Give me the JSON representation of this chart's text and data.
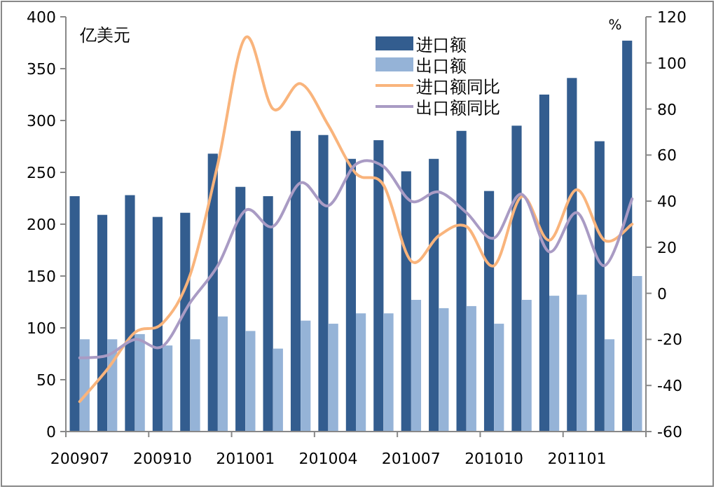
{
  "chart_data": {
    "type": "bar",
    "ylabel": "亿美元",
    "y2label": "%",
    "categories": [
      "200907",
      null,
      null,
      "200910",
      null,
      null,
      "201001",
      null,
      null,
      "201004",
      null,
      null,
      "201007",
      null,
      null,
      "201010",
      null,
      null,
      "201101",
      null,
      null
    ],
    "ylim": [
      0,
      400
    ],
    "yticks": [
      0,
      50,
      100,
      150,
      200,
      250,
      300,
      350,
      400
    ],
    "y2lim": [
      -60,
      120
    ],
    "y2ticks": [
      -60,
      -40,
      -20,
      0,
      20,
      40,
      60,
      80,
      100,
      120
    ],
    "grid": false,
    "legend": "top",
    "series": [
      {
        "name": "进口额",
        "color": "#335d8f",
        "values": [
          227,
          209,
          228,
          207,
          211,
          268,
          236,
          227,
          290,
          286,
          263,
          281,
          251,
          263,
          290,
          232,
          295,
          325,
          341,
          280,
          377
        ]
      },
      {
        "name": "出口额",
        "color": "#95b3d7",
        "values": [
          89,
          89,
          94,
          83,
          89,
          111,
          97,
          80,
          107,
          104,
          114,
          114,
          127,
          119,
          121,
          104,
          127,
          131,
          132,
          89,
          150
        ]
      },
      {
        "name": "进口额同比",
        "type": "line",
        "axis": "y2",
        "color": "#f9b47c",
        "values": [
          -47,
          -33,
          -17,
          -13,
          8,
          56,
          111,
          80,
          91,
          73,
          52,
          47,
          14,
          25,
          29,
          12,
          42,
          23,
          45,
          23,
          30
        ]
      },
      {
        "name": "出口额同比",
        "type": "line",
        "axis": "y2",
        "color": "#a99bc4",
        "values": [
          -28,
          -27,
          -20,
          -23,
          -4,
          12,
          36,
          29,
          48,
          38,
          56,
          55,
          40,
          44,
          35,
          24,
          43,
          18,
          35,
          12,
          41
        ]
      }
    ]
  }
}
